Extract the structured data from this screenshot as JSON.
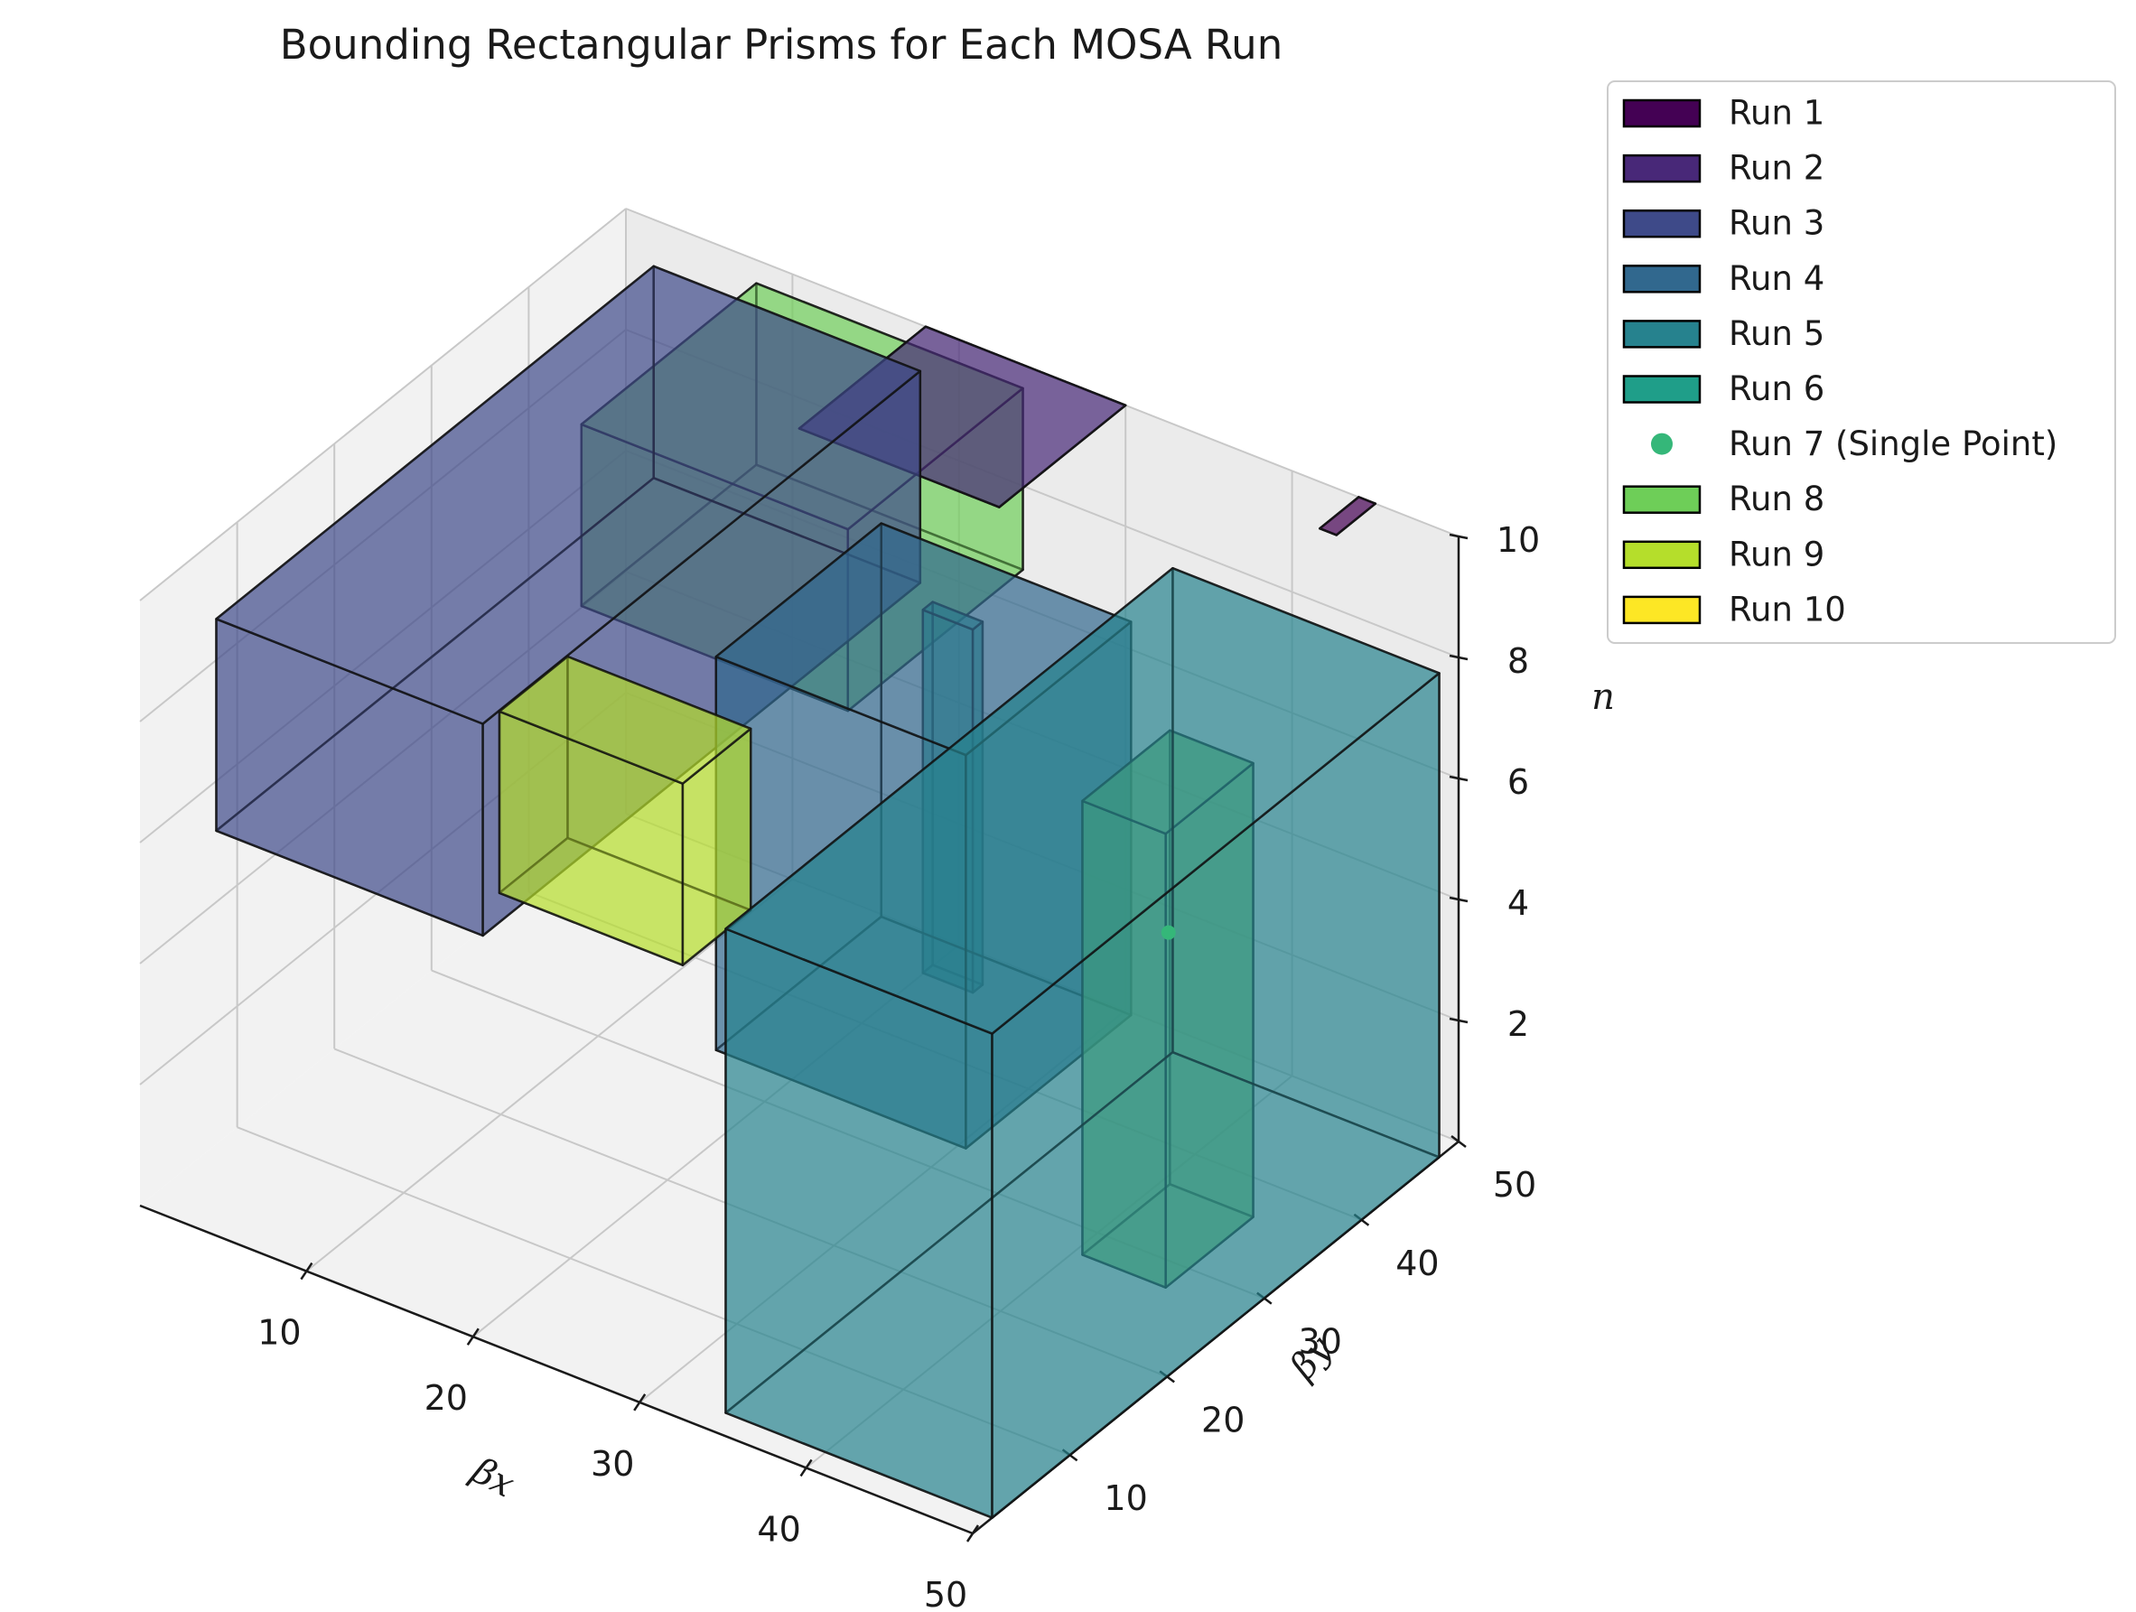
{
  "chart_data": {
    "type": "3d-box",
    "title": "Bounding Rectangular Prisms for Each MOSA Run",
    "xlabel": "βx",
    "ylabel": "βy",
    "zlabel": "n",
    "xlim": [
      0,
      50
    ],
    "ylim": [
      0,
      50
    ],
    "zlim": [
      0,
      10
    ],
    "xticks": [
      10,
      20,
      30,
      40,
      50
    ],
    "yticks": [
      10,
      20,
      30,
      40,
      50
    ],
    "zticks": [
      2,
      4,
      6,
      8,
      10
    ],
    "grid": true,
    "legend_position": "outside-right",
    "series": [
      {
        "name": "Run 1",
        "kind": "box",
        "color": "#440154",
        "x": [
          44,
          45
        ],
        "y": [
          46,
          50
        ],
        "z": [
          10,
          10
        ]
      },
      {
        "name": "Run 2",
        "kind": "box",
        "color": "#482878",
        "x": [
          18,
          30
        ],
        "y": [
          37,
          50
        ],
        "z": [
          10,
          10
        ]
      },
      {
        "name": "Run 3",
        "kind": "box",
        "color": "#3e4a89",
        "x": [
          4,
          20
        ],
        "y": [
          1,
          46
        ],
        "z": [
          6.5,
          10
        ]
      },
      {
        "name": "Run 4",
        "kind": "box",
        "color": "#31688e",
        "x": [
          20,
          35
        ],
        "y": [
          25,
          42
        ],
        "z": [
          1.5,
          8
        ]
      },
      {
        "name": "Run 5",
        "kind": "box",
        "color": "#26828e",
        "x": [
          34,
          50
        ],
        "y": [
          2,
          48
        ],
        "z": [
          0,
          8
        ]
      },
      {
        "name": "Run 6",
        "kind": "box",
        "color": "#1f9e89",
        "x": [
          26,
          29
        ],
        "y": [
          36,
          37
        ],
        "z": [
          2,
          8
        ]
      },
      {
        "name": "Run 7 (Single Point)",
        "kind": "point",
        "color": "#35b779",
        "x": 46,
        "y": 27,
        "z": 6
      },
      {
        "name": "Run 8",
        "kind": "box",
        "color": "#6ece58",
        "x": [
          9,
          25
        ],
        "y": [
          30,
          48
        ],
        "z": [
          7,
          10
        ]
      },
      {
        "name": "Run 8",
        "kind": "box",
        "color": "#6ece58",
        "x": [
          42,
          47
        ],
        "y": [
          25,
          34
        ],
        "z": [
          0.5,
          8
        ]
      },
      {
        "name": "Run 9",
        "kind": "box",
        "color": "#b5de2b",
        "x": [
          14,
          25
        ],
        "y": [
          13,
          20
        ],
        "z": [
          5,
          8
        ]
      },
      {
        "name": "Run 10",
        "kind": "box",
        "color": "#fde725",
        "x": [],
        "y": [],
        "z": []
      }
    ],
    "legend": [
      {
        "label": "Run 1",
        "color": "#440154",
        "marker": "patch"
      },
      {
        "label": "Run 2",
        "color": "#482878",
        "marker": "patch"
      },
      {
        "label": "Run 3",
        "color": "#3e4a89",
        "marker": "patch"
      },
      {
        "label": "Run 4",
        "color": "#31688e",
        "marker": "patch"
      },
      {
        "label": "Run 5",
        "color": "#26828e",
        "marker": "patch"
      },
      {
        "label": "Run 6",
        "color": "#1f9e89",
        "marker": "patch"
      },
      {
        "label": "Run 7 (Single Point)",
        "color": "#35b779",
        "marker": "dot"
      },
      {
        "label": "Run 8",
        "color": "#6ece58",
        "marker": "patch"
      },
      {
        "label": "Run 9",
        "color": "#b5de2b",
        "marker": "patch"
      },
      {
        "label": "Run 10",
        "color": "#fde725",
        "marker": "patch"
      }
    ]
  }
}
